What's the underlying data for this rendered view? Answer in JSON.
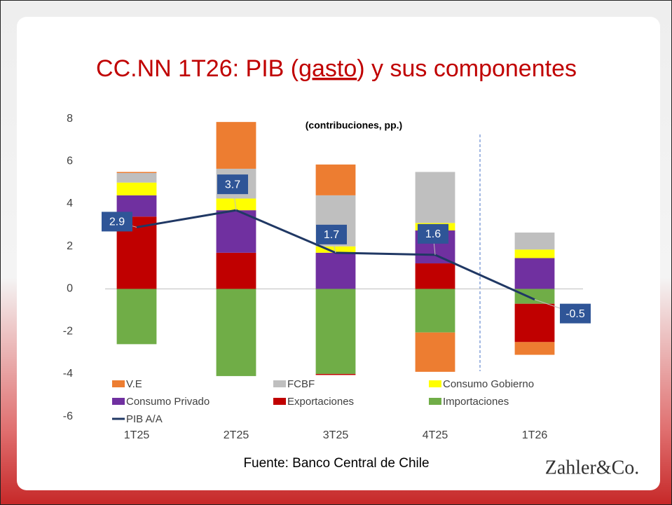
{
  "chart_data": {
    "type": "stacked_bar_line",
    "title_parts": [
      "CC.NN 1T26: PIB  (",
      "gasto",
      ") y sus componentes"
    ],
    "subtitle": "(contribuciones, pp.)",
    "categories": [
      "1T25",
      "2T25",
      "3T25",
      "4T25",
      "1T26"
    ],
    "series": [
      {
        "name": "V.E",
        "color": "#ed7d31",
        "values": [
          0.05,
          2.2,
          1.45,
          -1.85,
          -0.6
        ]
      },
      {
        "name": "FCBF",
        "color": "#bfbfbf",
        "values": [
          0.45,
          1.4,
          2.4,
          2.4,
          0.8
        ]
      },
      {
        "name": "Consumo Gobierno",
        "color": "#ffff00",
        "values": [
          0.6,
          0.55,
          0.3,
          0.35,
          0.4
        ]
      },
      {
        "name": "Consumo Privado",
        "color": "#7030a0",
        "values": [
          1.0,
          2.0,
          1.7,
          1.55,
          1.45
        ]
      },
      {
        "name": "Exportaciones",
        "color": "#c00000",
        "values": [
          3.4,
          1.7,
          -0.05,
          1.2,
          -1.8
        ]
      },
      {
        "name": "Importaciones",
        "color": "#70ad47",
        "values": [
          -2.6,
          -4.1,
          -4.0,
          -2.05,
          -0.7
        ]
      },
      {
        "name": "PIB A/A",
        "color": "#203864",
        "type": "line",
        "values": [
          2.9,
          3.7,
          1.7,
          1.6,
          -0.5
        ]
      }
    ],
    "ylim": [
      -6,
      8
    ],
    "yticks": [
      -6,
      -4,
      -2,
      0,
      2,
      4,
      6,
      8
    ],
    "source": "Fuente: Banco Central de Chile",
    "brand": "Zahler&Co."
  }
}
